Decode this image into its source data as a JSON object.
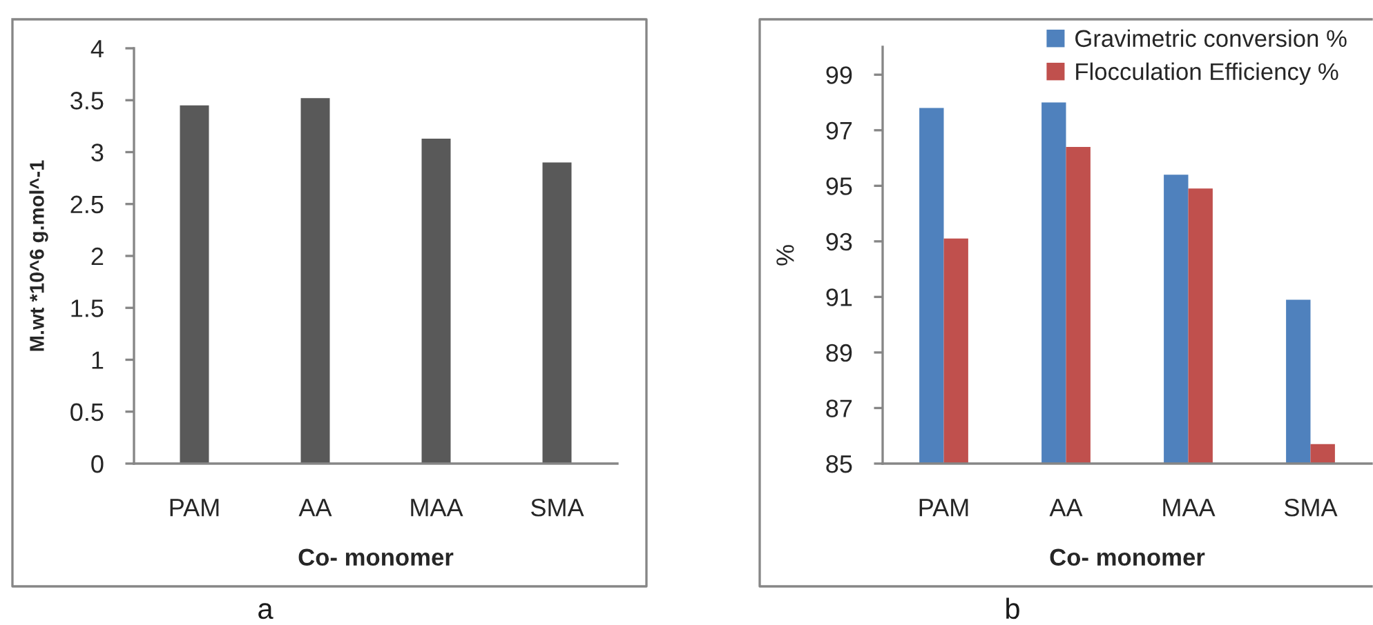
{
  "chart_data": [
    {
      "type": "bar",
      "categories": [
        "PAM",
        "AA",
        "MAA",
        "SMA"
      ],
      "values": [
        3.45,
        3.52,
        3.13,
        2.9
      ],
      "color": "#595959",
      "xlabel": "Co- monomer",
      "ylabel": "M.wt *10^6 g.mol^-1",
      "ylim": [
        0,
        4
      ],
      "yticks": [
        0,
        0.5,
        1,
        1.5,
        2,
        2.5,
        3,
        3.5,
        4
      ],
      "annotations": [
        "a"
      ]
    },
    {
      "type": "bar",
      "categories": [
        "PAM",
        "AA",
        "MAA",
        "SMA"
      ],
      "series": [
        {
          "name": "Gravimetric conversion %",
          "color": "#4f81bd",
          "values": [
            97.8,
            98.0,
            95.4,
            90.9
          ]
        },
        {
          "name": "Flocculation Efficiency %",
          "color": "#c0504d",
          "values": [
            93.1,
            96.4,
            94.9,
            85.7
          ]
        }
      ],
      "xlabel": "Co- monomer",
      "ylabel": "%",
      "ylim": [
        85,
        100
      ],
      "yticks": [
        85,
        87,
        89,
        91,
        93,
        95,
        97,
        99
      ],
      "annotations": [
        "b"
      ],
      "legend": "top right"
    }
  ]
}
